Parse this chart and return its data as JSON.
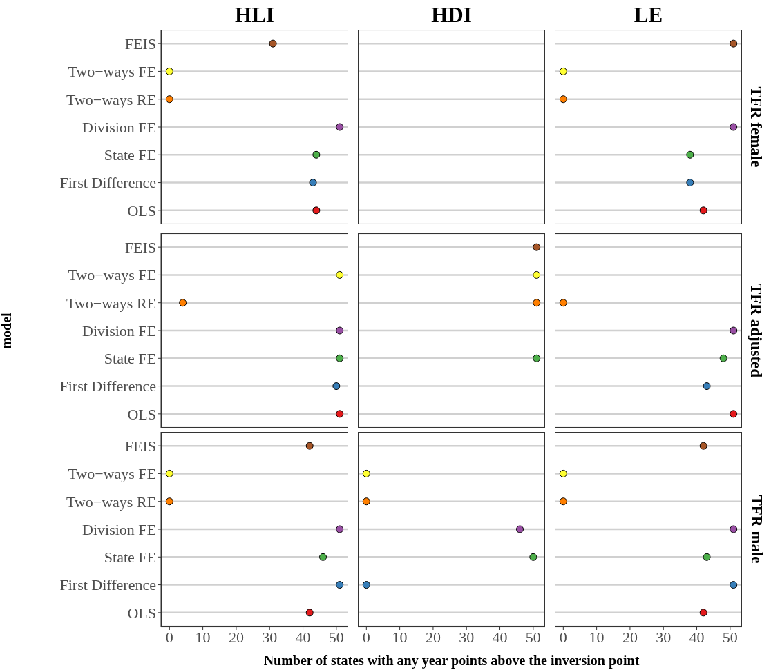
{
  "chart_data": [
    {
      "type": "scatter",
      "orientation": "horizontal",
      "title": "HLI",
      "tick_labels": "y",
      "categories": [
        "FEIS",
        "Two−ways FE",
        "Two−ways RE",
        "Division FE",
        "State FE",
        "First Difference",
        "OLS"
      ],
      "values": [
        31,
        0,
        0,
        51,
        44,
        43,
        44
      ],
      "colors": [
        "#a65628",
        "#ffff33",
        "#ff7f00",
        "#984ea3",
        "#4daf4a",
        "#377eb8",
        "#e41a1c"
      ],
      "xlim": [
        -2.55,
        53.55
      ],
      "xticks": [
        0,
        10,
        20,
        30,
        40,
        50
      ],
      "grid": "y",
      "marker": "circle"
    },
    {
      "type": "scatter",
      "orientation": "horizontal",
      "title": "HDI",
      "tick_labels": false,
      "categories": [
        "FEIS",
        "Two−ways FE",
        "Two−ways RE",
        "Division FE",
        "State FE",
        "First Difference",
        "OLS"
      ],
      "values": [
        null,
        null,
        null,
        null,
        null,
        null,
        null
      ],
      "colors": [
        "#a65628",
        "#ffff33",
        "#ff7f00",
        "#984ea3",
        "#4daf4a",
        "#377eb8",
        "#e41a1c"
      ],
      "xlim": [
        -2.55,
        53.55
      ],
      "xticks": [
        0,
        10,
        20,
        30,
        40,
        50
      ],
      "grid": "y",
      "marker": "circle"
    },
    {
      "type": "scatter",
      "orientation": "horizontal",
      "title": "LE",
      "y2label": "TFR female",
      "tick_labels": false,
      "categories": [
        "FEIS",
        "Two−ways FE",
        "Two−ways RE",
        "Division FE",
        "State FE",
        "First Difference",
        "OLS"
      ],
      "values": [
        51,
        0,
        0,
        51,
        38,
        38,
        42
      ],
      "colors": [
        "#a65628",
        "#ffff33",
        "#ff7f00",
        "#984ea3",
        "#4daf4a",
        "#377eb8",
        "#e41a1c"
      ],
      "xlim": [
        -2.55,
        53.55
      ],
      "xticks": [
        0,
        10,
        20,
        30,
        40,
        50
      ],
      "grid": "y",
      "marker": "circle"
    },
    {
      "type": "scatter",
      "orientation": "horizontal",
      "ylabel": "model",
      "tick_labels": "y",
      "categories": [
        "FEIS",
        "Two−ways FE",
        "Two−ways RE",
        "Division FE",
        "State FE",
        "First Difference",
        "OLS"
      ],
      "values": [
        null,
        51,
        4,
        51,
        51,
        50,
        51
      ],
      "colors": [
        "#a65628",
        "#ffff33",
        "#ff7f00",
        "#984ea3",
        "#4daf4a",
        "#377eb8",
        "#e41a1c"
      ],
      "xlim": [
        -2.55,
        53.55
      ],
      "xticks": [
        0,
        10,
        20,
        30,
        40,
        50
      ],
      "grid": "y",
      "marker": "circle"
    },
    {
      "type": "scatter",
      "orientation": "horizontal",
      "tick_labels": false,
      "categories": [
        "FEIS",
        "Two−ways FE",
        "Two−ways RE",
        "Division FE",
        "State FE",
        "First Difference",
        "OLS"
      ],
      "values": [
        51,
        51,
        51,
        null,
        51,
        null,
        null
      ],
      "colors": [
        "#a65628",
        "#ffff33",
        "#ff7f00",
        "#984ea3",
        "#4daf4a",
        "#377eb8",
        "#e41a1c"
      ],
      "xlim": [
        -2.55,
        53.55
      ],
      "xticks": [
        0,
        10,
        20,
        30,
        40,
        50
      ],
      "grid": "y",
      "marker": "circle"
    },
    {
      "type": "scatter",
      "orientation": "horizontal",
      "y2label": "TFR adjusted",
      "tick_labels": false,
      "categories": [
        "FEIS",
        "Two−ways FE",
        "Two−ways RE",
        "Division FE",
        "State FE",
        "First Difference",
        "OLS"
      ],
      "values": [
        null,
        null,
        0,
        51,
        48,
        43,
        51
      ],
      "colors": [
        "#a65628",
        "#ffff33",
        "#ff7f00",
        "#984ea3",
        "#4daf4a",
        "#377eb8",
        "#e41a1c"
      ],
      "xlim": [
        -2.55,
        53.55
      ],
      "xticks": [
        0,
        10,
        20,
        30,
        40,
        50
      ],
      "grid": "y",
      "marker": "circle"
    },
    {
      "type": "scatter",
      "orientation": "horizontal",
      "categories": [
        "FEIS",
        "Two−ways FE",
        "Two−ways RE",
        "Division FE",
        "State FE",
        "First Difference",
        "OLS"
      ],
      "values": [
        42,
        0,
        0,
        51,
        46,
        51,
        42
      ],
      "colors": [
        "#a65628",
        "#ffff33",
        "#ff7f00",
        "#984ea3",
        "#4daf4a",
        "#377eb8",
        "#e41a1c"
      ],
      "xlim": [
        -2.55,
        53.55
      ],
      "xticks": [
        0,
        10,
        20,
        30,
        40,
        50
      ],
      "grid": "y",
      "marker": "circle"
    },
    {
      "type": "scatter",
      "orientation": "horizontal",
      "xlabel": "Number of states with any year points above the inversion point",
      "tick_labels": "x",
      "categories": [
        "FEIS",
        "Two−ways FE",
        "Two−ways RE",
        "Division FE",
        "State FE",
        "First Difference",
        "OLS"
      ],
      "values": [
        null,
        0,
        0,
        46,
        50,
        0,
        null
      ],
      "colors": [
        "#a65628",
        "#ffff33",
        "#ff7f00",
        "#984ea3",
        "#4daf4a",
        "#377eb8",
        "#e41a1c"
      ],
      "xlim": [
        -2.55,
        53.55
      ],
      "xticks": [
        0,
        10,
        20,
        30,
        40,
        50
      ],
      "grid": "y",
      "marker": "circle"
    },
    {
      "type": "scatter",
      "orientation": "horizontal",
      "y2label": "TFR male",
      "tick_labels": "x",
      "categories": [
        "FEIS",
        "Two−ways FE",
        "Two−ways RE",
        "Division FE",
        "State FE",
        "First Difference",
        "OLS"
      ],
      "values": [
        42,
        0,
        0,
        51,
        43,
        51,
        42
      ],
      "colors": [
        "#a65628",
        "#ffff33",
        "#ff7f00",
        "#984ea3",
        "#4daf4a",
        "#377eb8",
        "#e41a1c"
      ],
      "xlim": [
        -2.55,
        53.55
      ],
      "xticks": [
        0,
        10,
        20,
        30,
        40,
        50
      ],
      "grid": "y",
      "marker": "circle"
    }
  ]
}
